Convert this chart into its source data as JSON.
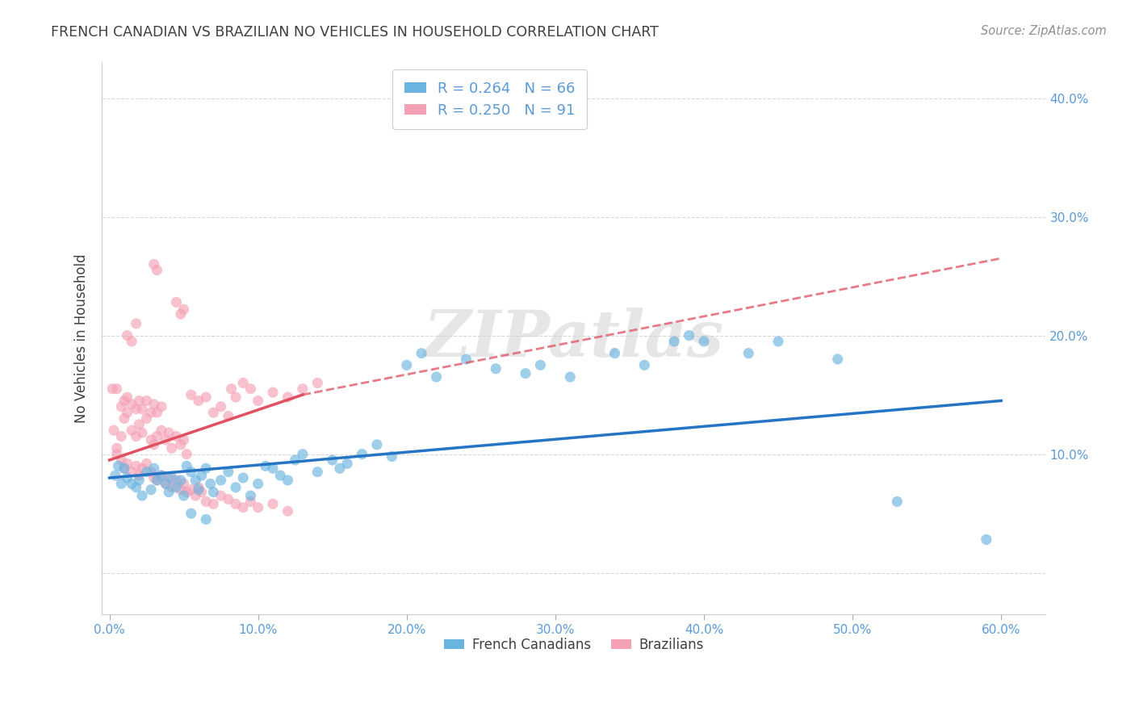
{
  "title": "FRENCH CANADIAN VS BRAZILIAN NO VEHICLES IN HOUSEHOLD CORRELATION CHART",
  "source": "Source: ZipAtlas.com",
  "ylabel": "No Vehicles in Household",
  "xlim": [
    -0.5,
    63
  ],
  "ylim": [
    -3.5,
    43
  ],
  "watermark": "ZIPatlas",
  "legend_r_blue": "R = 0.264",
  "legend_n_blue": "N = 66",
  "legend_r_pink": "R = 0.250",
  "legend_n_pink": "N = 91",
  "blue_color": "#6cb4e0",
  "pink_color": "#f4a0b5",
  "blue_line_color": "#2575c4",
  "pink_line_color": "#e05060",
  "axis_color": "#5b9bd5",
  "title_color": "#404040",
  "source_color": "#909090",
  "blue_line": [
    [
      0,
      8.0
    ],
    [
      60,
      14.5
    ]
  ],
  "pink_line_solid": [
    [
      0,
      9.5
    ],
    [
      13,
      15.0
    ]
  ],
  "pink_line_dash": [
    [
      13,
      15.0
    ],
    [
      60,
      26.5
    ]
  ],
  "blue_scatter": [
    [
      0.4,
      8.2
    ],
    [
      0.6,
      9.0
    ],
    [
      0.8,
      7.5
    ],
    [
      1.0,
      8.8
    ],
    [
      1.2,
      8.0
    ],
    [
      1.5,
      7.5
    ],
    [
      1.8,
      7.2
    ],
    [
      2.0,
      7.8
    ],
    [
      2.2,
      6.5
    ],
    [
      2.5,
      8.5
    ],
    [
      2.8,
      7.0
    ],
    [
      3.0,
      8.8
    ],
    [
      3.2,
      7.8
    ],
    [
      3.5,
      8.2
    ],
    [
      3.8,
      7.5
    ],
    [
      4.0,
      6.8
    ],
    [
      4.2,
      8.0
    ],
    [
      4.5,
      7.2
    ],
    [
      4.8,
      7.8
    ],
    [
      5.0,
      6.5
    ],
    [
      5.2,
      9.0
    ],
    [
      5.5,
      8.5
    ],
    [
      5.8,
      7.8
    ],
    [
      6.0,
      7.0
    ],
    [
      6.2,
      8.2
    ],
    [
      6.5,
      8.8
    ],
    [
      6.8,
      7.5
    ],
    [
      7.0,
      6.8
    ],
    [
      7.5,
      7.8
    ],
    [
      8.0,
      8.5
    ],
    [
      8.5,
      7.2
    ],
    [
      9.0,
      8.0
    ],
    [
      9.5,
      6.5
    ],
    [
      10.0,
      7.5
    ],
    [
      10.5,
      9.0
    ],
    [
      11.0,
      8.8
    ],
    [
      11.5,
      8.2
    ],
    [
      12.0,
      7.8
    ],
    [
      12.5,
      9.5
    ],
    [
      13.0,
      10.0
    ],
    [
      14.0,
      8.5
    ],
    [
      15.0,
      9.5
    ],
    [
      15.5,
      8.8
    ],
    [
      16.0,
      9.2
    ],
    [
      17.0,
      10.0
    ],
    [
      18.0,
      10.8
    ],
    [
      19.0,
      9.8
    ],
    [
      20.0,
      17.5
    ],
    [
      21.0,
      18.5
    ],
    [
      22.0,
      16.5
    ],
    [
      24.0,
      18.0
    ],
    [
      26.0,
      17.2
    ],
    [
      28.0,
      16.8
    ],
    [
      29.0,
      17.5
    ],
    [
      31.0,
      16.5
    ],
    [
      34.0,
      18.5
    ],
    [
      36.0,
      17.5
    ],
    [
      38.0,
      19.5
    ],
    [
      39.0,
      20.0
    ],
    [
      40.0,
      19.5
    ],
    [
      43.0,
      18.5
    ],
    [
      45.0,
      19.5
    ],
    [
      49.0,
      18.0
    ],
    [
      53.0,
      6.0
    ],
    [
      59.0,
      2.8
    ],
    [
      5.5,
      5.0
    ],
    [
      6.5,
      4.5
    ]
  ],
  "pink_scatter": [
    [
      0.2,
      15.5
    ],
    [
      0.3,
      12.0
    ],
    [
      0.5,
      10.0
    ],
    [
      0.8,
      9.5
    ],
    [
      1.0,
      8.8
    ],
    [
      1.2,
      9.2
    ],
    [
      1.5,
      8.5
    ],
    [
      1.8,
      9.0
    ],
    [
      2.0,
      8.2
    ],
    [
      2.2,
      8.8
    ],
    [
      2.5,
      9.2
    ],
    [
      2.8,
      8.5
    ],
    [
      3.0,
      8.0
    ],
    [
      3.2,
      7.8
    ],
    [
      3.5,
      8.2
    ],
    [
      3.8,
      7.5
    ],
    [
      4.0,
      8.0
    ],
    [
      4.2,
      7.2
    ],
    [
      4.5,
      7.8
    ],
    [
      4.8,
      7.0
    ],
    [
      5.0,
      7.5
    ],
    [
      5.2,
      6.8
    ],
    [
      5.5,
      7.0
    ],
    [
      5.8,
      6.5
    ],
    [
      6.0,
      7.2
    ],
    [
      6.2,
      6.8
    ],
    [
      0.5,
      15.5
    ],
    [
      0.8,
      14.0
    ],
    [
      1.0,
      14.5
    ],
    [
      1.2,
      14.8
    ],
    [
      1.5,
      14.2
    ],
    [
      1.8,
      13.8
    ],
    [
      2.0,
      14.5
    ],
    [
      2.2,
      13.8
    ],
    [
      2.5,
      14.5
    ],
    [
      2.8,
      13.5
    ],
    [
      3.0,
      14.2
    ],
    [
      3.2,
      13.5
    ],
    [
      3.5,
      14.0
    ],
    [
      0.5,
      10.5
    ],
    [
      0.8,
      11.5
    ],
    [
      1.0,
      13.0
    ],
    [
      1.2,
      13.5
    ],
    [
      1.5,
      12.0
    ],
    [
      1.8,
      11.5
    ],
    [
      2.0,
      12.5
    ],
    [
      2.2,
      11.8
    ],
    [
      2.5,
      13.0
    ],
    [
      2.8,
      11.2
    ],
    [
      3.0,
      10.8
    ],
    [
      3.2,
      11.5
    ],
    [
      3.5,
      12.0
    ],
    [
      3.8,
      11.2
    ],
    [
      4.0,
      11.8
    ],
    [
      4.2,
      10.5
    ],
    [
      4.5,
      11.5
    ],
    [
      4.8,
      10.8
    ],
    [
      5.0,
      11.2
    ],
    [
      5.2,
      10.0
    ],
    [
      1.2,
      20.0
    ],
    [
      1.5,
      19.5
    ],
    [
      1.8,
      21.0
    ],
    [
      4.5,
      22.8
    ],
    [
      4.8,
      21.8
    ],
    [
      5.0,
      22.2
    ],
    [
      3.0,
      26.0
    ],
    [
      3.2,
      25.5
    ],
    [
      5.5,
      15.0
    ],
    [
      6.0,
      14.5
    ],
    [
      6.5,
      14.8
    ],
    [
      7.0,
      13.5
    ],
    [
      7.5,
      14.0
    ],
    [
      8.0,
      13.2
    ],
    [
      8.2,
      15.5
    ],
    [
      8.5,
      14.8
    ],
    [
      9.0,
      16.0
    ],
    [
      9.5,
      15.5
    ],
    [
      10.0,
      14.5
    ],
    [
      11.0,
      15.2
    ],
    [
      12.0,
      14.8
    ],
    [
      13.0,
      15.5
    ],
    [
      14.0,
      16.0
    ],
    [
      6.5,
      6.0
    ],
    [
      7.0,
      5.8
    ],
    [
      7.5,
      6.5
    ],
    [
      8.0,
      6.2
    ],
    [
      8.5,
      5.8
    ],
    [
      9.0,
      5.5
    ],
    [
      9.5,
      6.0
    ],
    [
      10.0,
      5.5
    ],
    [
      11.0,
      5.8
    ],
    [
      12.0,
      5.2
    ]
  ]
}
